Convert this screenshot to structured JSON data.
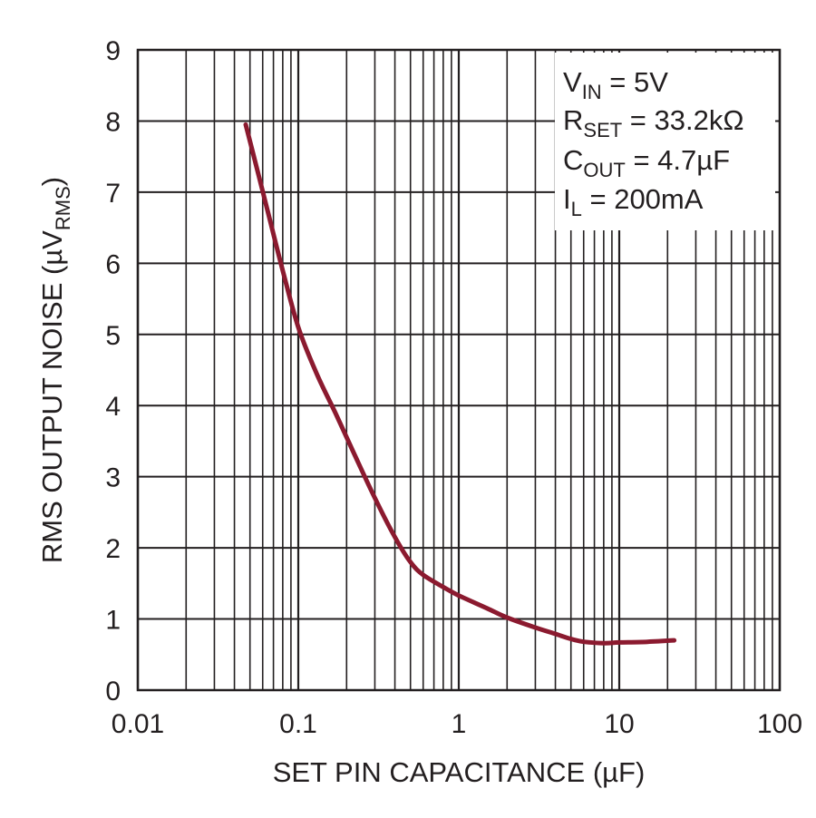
{
  "chart_data": {
    "type": "line",
    "x_scale": "log",
    "xlim": [
      0.01,
      100
    ],
    "ylim": [
      0,
      9
    ],
    "grid": true,
    "title": "",
    "xlabel": "SET PIN CAPACITANCE (µF)",
    "ylabel": {
      "main": "RMS OUTPUT NOISE (µV",
      "sub": "RMS",
      "close": ")"
    },
    "x_ticks": [
      {
        "value": 0.01,
        "label": "0.01"
      },
      {
        "value": 0.1,
        "label": "0.1"
      },
      {
        "value": 1,
        "label": "1"
      },
      {
        "value": 10,
        "label": "10"
      },
      {
        "value": 100,
        "label": "100"
      }
    ],
    "y_ticks": [
      {
        "value": 0,
        "label": "0"
      },
      {
        "value": 1,
        "label": "1"
      },
      {
        "value": 2,
        "label": "2"
      },
      {
        "value": 3,
        "label": "3"
      },
      {
        "value": 4,
        "label": "4"
      },
      {
        "value": 5,
        "label": "5"
      },
      {
        "value": 6,
        "label": "6"
      },
      {
        "value": 7,
        "label": "7"
      },
      {
        "value": 8,
        "label": "8"
      },
      {
        "value": 9,
        "label": "9"
      }
    ],
    "series": [
      {
        "color": "#8b1a2f",
        "x": [
          0.047,
          0.055,
          0.065,
          0.08,
          0.1,
          0.13,
          0.17,
          0.22,
          0.3,
          0.4,
          0.5,
          0.6,
          0.8,
          1,
          1.5,
          2,
          3,
          4,
          5,
          6,
          8,
          10,
          15,
          22
        ],
        "y": [
          7.95,
          7.35,
          6.7,
          5.9,
          5.1,
          4.45,
          3.9,
          3.35,
          2.7,
          2.15,
          1.8,
          1.62,
          1.45,
          1.33,
          1.15,
          1.02,
          0.88,
          0.79,
          0.72,
          0.68,
          0.66,
          0.67,
          0.68,
          0.7
        ]
      }
    ],
    "annotation": {
      "lines": [
        {
          "main": "V",
          "sub": "IN",
          "rest": " = 5V"
        },
        {
          "main": "R",
          "sub": "SET",
          "rest": " = 33.2kΩ"
        },
        {
          "main": "C",
          "sub": "OUT",
          "rest": " = 4.7µF"
        },
        {
          "main": "I",
          "sub": "L",
          "rest": " = 200mA"
        }
      ]
    }
  }
}
